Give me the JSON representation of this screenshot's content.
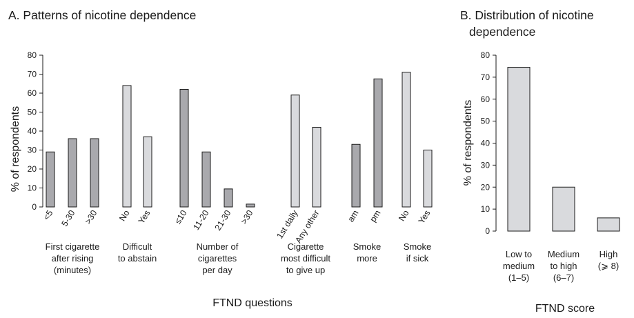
{
  "chart_data": [
    {
      "type": "bar",
      "title": "A. Patterns of nicotine dependence",
      "xlabel": "FTND questions",
      "ylabel": "% of respondents",
      "ylim": [
        0,
        80
      ],
      "yticks": [
        "0",
        "10",
        "20",
        "30",
        "40",
        "50",
        "60",
        "70",
        "80"
      ],
      "groups": [
        {
          "name": [
            "First cigarette",
            "after rising",
            "(minutes)"
          ],
          "color": "#a9a9ad",
          "bars": [
            {
              "label": "<5",
              "value": 29
            },
            {
              "label": "5-30",
              "value": 36
            },
            {
              "label": ">30",
              "value": 36
            }
          ]
        },
        {
          "name": [
            "Difficult",
            "to abstain"
          ],
          "color": "#d9dadd",
          "bars": [
            {
              "label": "No",
              "value": 64
            },
            {
              "label": "Yes",
              "value": 37
            }
          ]
        },
        {
          "name": [
            "Number of",
            "cigarettes",
            "per day"
          ],
          "color": "#a9a9ad",
          "bars": [
            {
              "label": "≤10",
              "value": 62
            },
            {
              "label": "11-20",
              "value": 29
            },
            {
              "label": "21-30",
              "value": 9.5
            },
            {
              "label": ">30",
              "value": 1.5
            }
          ]
        },
        {
          "name": [
            "Cigarette",
            "most difficult",
            "to give up"
          ],
          "color": "#d9dadd",
          "bars": [
            {
              "label": "1st daily",
              "value": 59
            },
            {
              "label": "Any other",
              "value": 42
            }
          ]
        },
        {
          "name": [
            "Smoke",
            "more"
          ],
          "color": "#a9a9ad",
          "bars": [
            {
              "label": "am",
              "value": 33
            },
            {
              "label": "pm",
              "value": 67.5
            }
          ]
        },
        {
          "name": [
            "Smoke",
            "if sick"
          ],
          "color": "#d9dadd",
          "bars": [
            {
              "label": "No",
              "value": 71
            },
            {
              "label": "Yes",
              "value": 30
            }
          ]
        }
      ]
    },
    {
      "type": "bar",
      "title": "B. Distribution of nicotine",
      "title_line2": "dependence",
      "xlabel": "FTND score",
      "ylabel": "% of respondents",
      "ylim": [
        0,
        80
      ],
      "yticks": [
        "0",
        "10",
        "20",
        "30",
        "40",
        "50",
        "60",
        "70",
        "80"
      ],
      "color": "#d9dadd",
      "categories": [
        [
          "Low to",
          "medium",
          "(1–5)"
        ],
        [
          "Medium",
          "to high",
          "(6–7)"
        ],
        [
          "High",
          "(⩾ 8)"
        ]
      ],
      "values": [
        74.5,
        20,
        6
      ]
    }
  ]
}
